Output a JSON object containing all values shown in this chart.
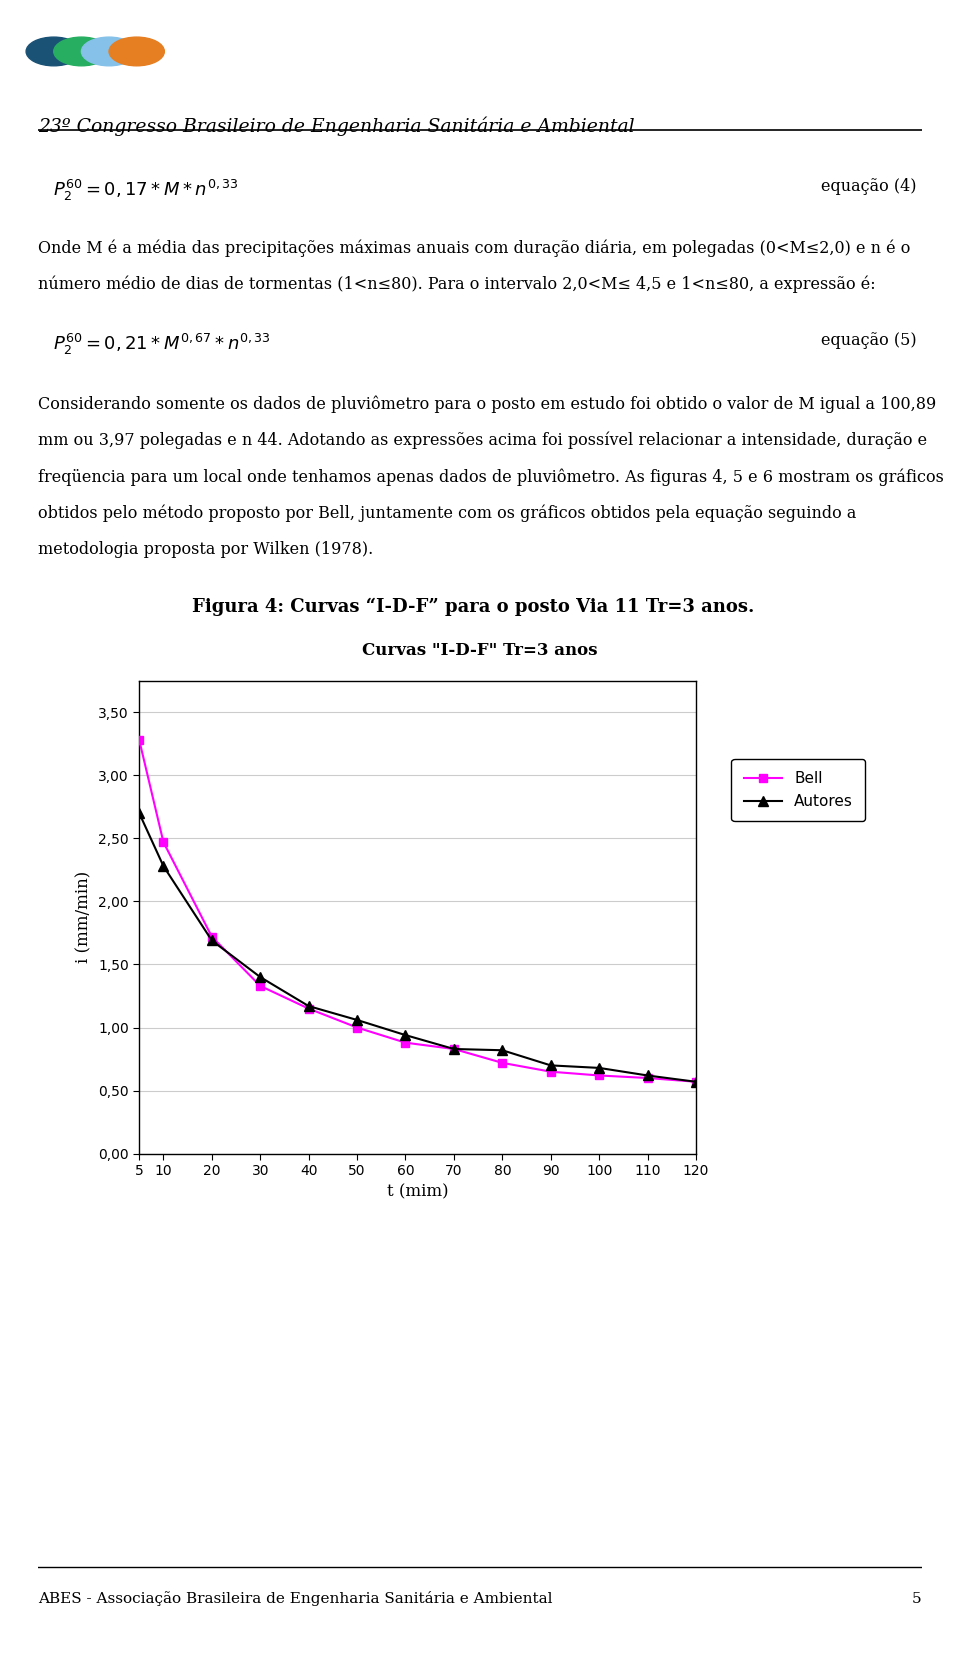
{
  "title_chart": "Curvas \"I-D-F\" Tr=3 anos",
  "xlabel": "t (mim)",
  "ylabel": "i (mm/min)",
  "t_values": [
    5,
    10,
    20,
    30,
    40,
    50,
    60,
    70,
    80,
    90,
    100,
    110,
    120
  ],
  "bell_values": [
    3.28,
    2.47,
    1.72,
    1.33,
    1.15,
    1.0,
    0.88,
    0.83,
    0.72,
    0.65,
    0.62,
    0.6,
    0.57
  ],
  "autores_values": [
    2.7,
    2.28,
    1.69,
    1.4,
    1.17,
    1.06,
    0.94,
    0.83,
    0.82,
    0.7,
    0.68,
    0.62,
    0.57
  ],
  "bell_color": "#FF00FF",
  "autores_color": "#000000",
  "ylim": [
    0.0,
    3.75
  ],
  "yticks": [
    0.0,
    0.5,
    1.0,
    1.5,
    2.0,
    2.5,
    3.0,
    3.5
  ],
  "ytick_labels": [
    "0,00",
    "0,50",
    "1,00",
    "1,50",
    "2,00",
    "2,50",
    "3,00",
    "3,50"
  ],
  "legend_bell": "Bell",
  "legend_autores": "Autores",
  "header_text": "23º Congresso Brasileiro de Engenharia Sanitária e Ambiental",
  "footer_text": "ABES - Associação Brasileira de Engenharia Sanitária e Ambiental",
  "footer_page": "5",
  "para1_line1": "Onde M é a média das precipitações máximas anuais com duração diária, em polegadas (0<M≤2,0) e n é o",
  "para1_line2": "número médio de dias de tormentas (1<n≤80). Para o intervalo 2,0<M≤ 4,5 e 1<n≤80, a expressão é:",
  "para2_line1": "Considerando somente os dados de pluviômetro para o posto em estudo foi obtido o valor de M igual a 100,89",
  "para2_line2": "mm ou 3,97 polegadas e n 44. Adotando as expressões acima foi possível relacionar a intensidade, duração e",
  "para2_line3": "freqüencia para um local onde tenhamos apenas dados de pluviômetro. As figuras 4, 5 e 6 mostram os gráficos",
  "para2_line4": "obtidos pelo método proposto por Bell, juntamente com os gráficos obtidos pela equação seguindo a",
  "para2_line5": "metodologia proposta por Wilken (1978).",
  "fig_caption": "Figura 4: Curvas “I-D-F” para o posto Via 11 Tr=3 anos."
}
